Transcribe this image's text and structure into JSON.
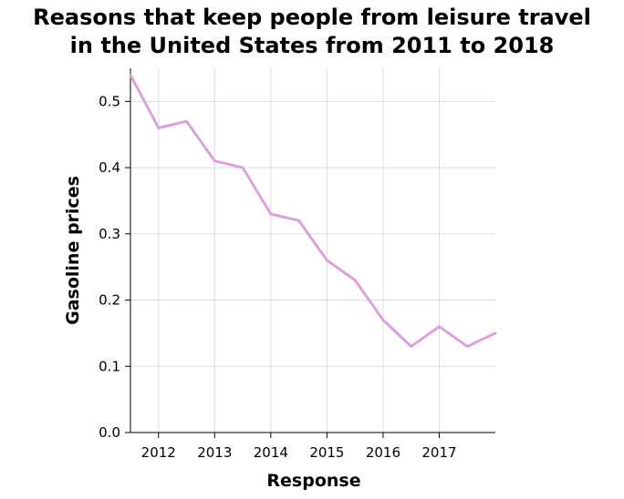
{
  "chart_data": {
    "type": "line",
    "title_lines": [
      "Reasons that keep people from leisure travel",
      "in the United States from 2011 to 2018"
    ],
    "xlabel": "Response",
    "ylabel": "Gasoline prices",
    "xlim": [
      2011.5,
      2018.0
    ],
    "ylim": [
      0.0,
      0.55
    ],
    "x_ticks": [
      2012,
      2013,
      2014,
      2015,
      2016,
      2017
    ],
    "y_ticks": [
      0.0,
      0.1,
      0.2,
      0.3,
      0.4,
      0.5
    ],
    "y_tick_labels": [
      "0.0",
      "0.1",
      "0.2",
      "0.3",
      "0.4",
      "0.5"
    ],
    "grid": true,
    "legend": "none",
    "series": [
      {
        "color": "#dda0dd",
        "x": [
          2011.5,
          2012.0,
          2012.5,
          2013.0,
          2013.5,
          2014.0,
          2014.5,
          2015.0,
          2015.5,
          2016.0,
          2016.5,
          2017.0,
          2017.5,
          2018.0
        ],
        "values": [
          0.54,
          0.46,
          0.47,
          0.41,
          0.4,
          0.33,
          0.32,
          0.26,
          0.23,
          0.17,
          0.13,
          0.16,
          0.13,
          0.15
        ]
      }
    ]
  }
}
